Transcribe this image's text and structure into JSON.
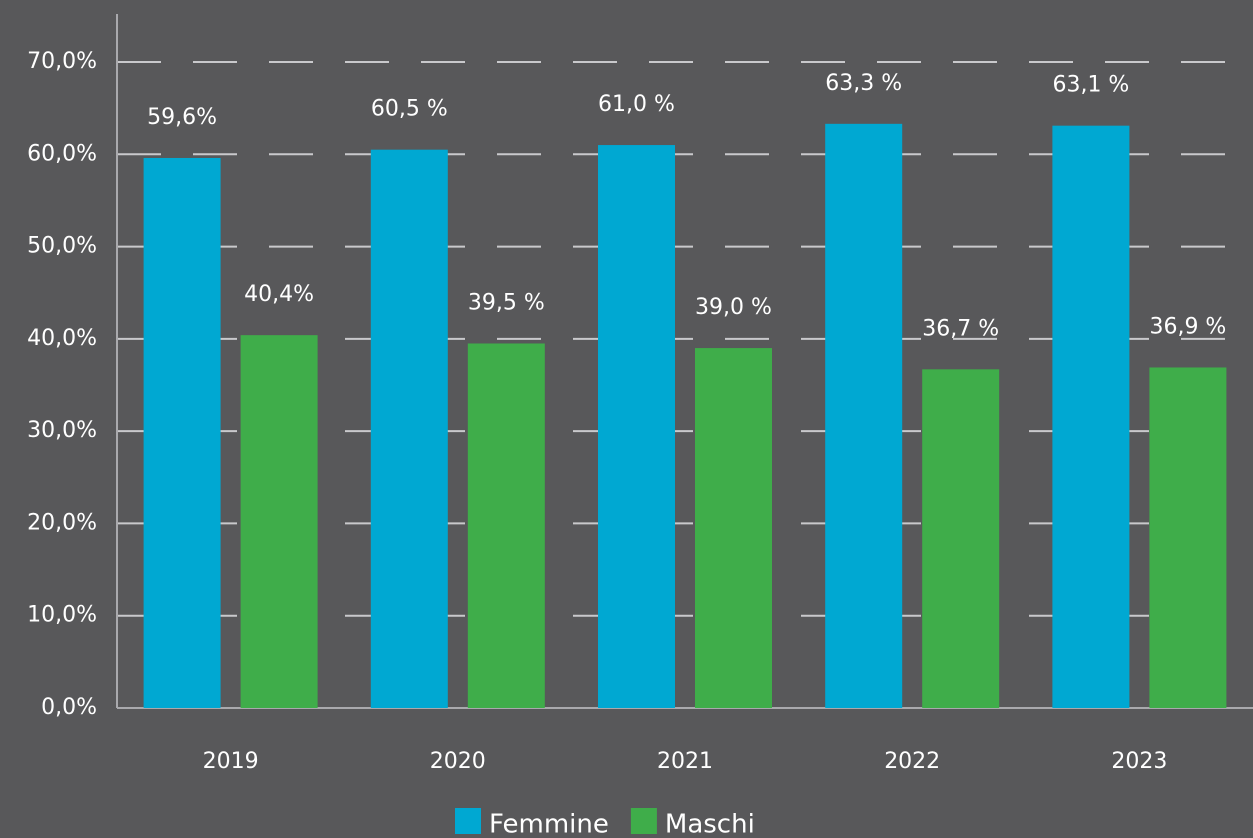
{
  "chart_data": {
    "type": "bar",
    "categories": [
      "2019",
      "2020",
      "2021",
      "2022",
      "2023"
    ],
    "series": [
      {
        "name": "Femmine",
        "color": "#00a8d2",
        "values": [
          59.6,
          60.5,
          61.0,
          63.3,
          63.1
        ],
        "value_labels": [
          "59,6%",
          "60,5 %",
          "61,0 %",
          "63,3 %",
          "63,1 %"
        ]
      },
      {
        "name": "Maschi",
        "color": "#3fad4a",
        "values": [
          40.4,
          39.5,
          39.0,
          36.7,
          36.9
        ],
        "value_labels": [
          "40,4%",
          "39,5 %",
          "39,0 %",
          "36,7 %",
          "36,9 %"
        ]
      }
    ],
    "ylim": [
      0,
      70
    ],
    "yticks": [
      {
        "value": 0,
        "label": "0,0%"
      },
      {
        "value": 10,
        "label": "10,0%"
      },
      {
        "value": 20,
        "label": "20,0%"
      },
      {
        "value": 30,
        "label": "30,0%"
      },
      {
        "value": 40,
        "label": "40,0%"
      },
      {
        "value": 50,
        "label": "50,0%"
      },
      {
        "value": 60,
        "label": "60,0%"
      },
      {
        "value": 70,
        "label": "70,0%"
      }
    ],
    "grid": true,
    "legend": "bottom"
  }
}
